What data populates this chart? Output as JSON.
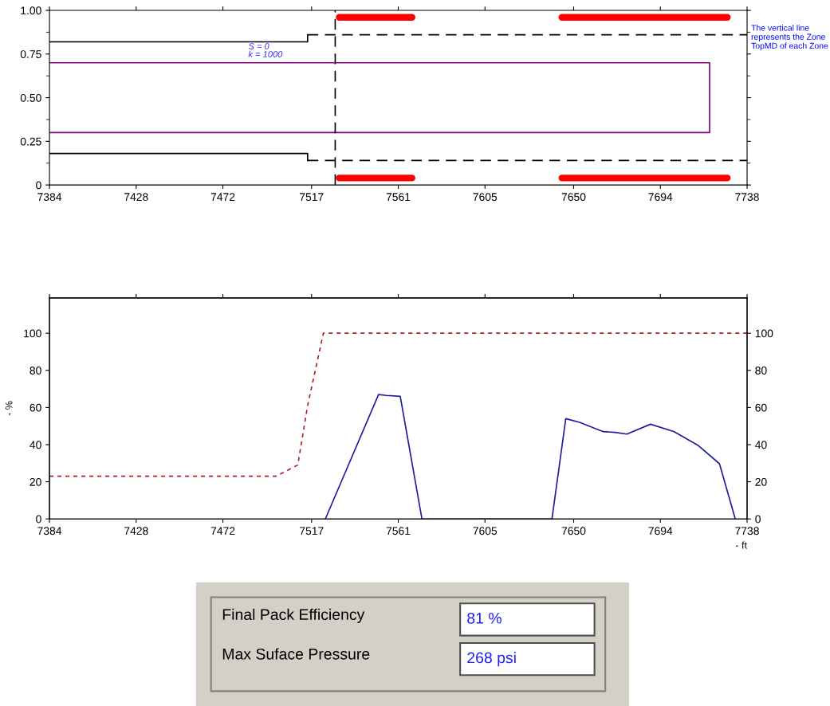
{
  "chart_data": [
    {
      "type": "line",
      "xlim": [
        7384,
        7738
      ],
      "ylim": [
        0,
        1
      ],
      "xticks": [
        7384,
        7428,
        7472,
        7517,
        7561,
        7605,
        7650,
        7694,
        7738
      ],
      "yticks": [
        0,
        {
          "value": 0.125,
          "label": null
        },
        {
          "value": 0.25,
          "label": "0.25"
        },
        {
          "value": 0.375,
          "label": null
        },
        {
          "value": 0.5,
          "label": "0.50"
        },
        {
          "value": 0.625,
          "label": null
        },
        {
          "value": 0.75,
          "label": "0.75"
        },
        {
          "value": 0.875,
          "label": null
        },
        {
          "value": 1,
          "label": "1.00"
        }
      ],
      "series": [
        {
          "color": "#000000",
          "line_style": "solid",
          "x": [
            7384,
            7515,
            7515
          ],
          "values": [
            0.82,
            0.82,
            0.86
          ]
        },
        {
          "color": "#000000",
          "line_style": "dashed",
          "x": [
            7515,
            7738
          ],
          "values": [
            0.86,
            0.86
          ]
        },
        {
          "color": "#000000",
          "line_style": "solid",
          "x": [
            7384,
            7515,
            7515
          ],
          "values": [
            0.18,
            0.18,
            0.14
          ]
        },
        {
          "color": "#000000",
          "line_style": "dashed",
          "x": [
            7515,
            7738
          ],
          "values": [
            0.14,
            0.14
          ]
        },
        {
          "color": "#800080",
          "line_style": "solid",
          "x": [
            7384,
            7719,
            7719,
            7384
          ],
          "values": [
            0.7,
            0.7,
            0.3,
            0.3
          ]
        },
        {
          "color": "#ff0000",
          "line_style": "solid",
          "x": [
            7531,
            7568,
            7600,
            7644,
            7728
          ],
          "values": [
            0.96,
            0.96,
            null,
            0.96,
            0.96
          ]
        },
        {
          "color": "#ff0000",
          "line_style": "solid",
          "x": [
            7531,
            7568,
            7600,
            7644,
            7728
          ],
          "values": [
            0.04,
            0.04,
            null,
            0.04,
            0.04
          ]
        }
      ],
      "ref_lines": [
        {
          "axis": "x",
          "value": 7529,
          "color": "#000000",
          "line_style": "dashed"
        }
      ],
      "annotations": [
        "S = 0",
        "k = 1000",
        "The vertical line represents the Zone TopMD of each Zone"
      ],
      "tick_labels": "xy"
    },
    {
      "type": "line",
      "xlabel": "- ft",
      "ylabel": "- %",
      "xlim": [
        7384,
        7738
      ],
      "ylim": [
        0,
        119
      ],
      "y2lim": [
        0,
        119
      ],
      "xticks": [
        7384,
        7428,
        7472,
        7517,
        7561,
        7605,
        7650,
        7694,
        7738
      ],
      "yticks": [
        0,
        20,
        40,
        60,
        80,
        100
      ],
      "y2ticks": [
        0,
        20,
        40,
        60,
        80,
        100
      ],
      "series": [
        {
          "color": "#aa2222",
          "line_style": "dotted",
          "x": [
            7384,
            7499,
            7510,
            7515,
            7523,
            7738
          ],
          "values": [
            23,
            23,
            29,
            61,
            100,
            100
          ]
        },
        {
          "color": "#1c1c9c",
          "line_style": "solid",
          "x": [
            7524,
            7551,
            7555,
            7562,
            7573,
            7639,
            7646,
            7653,
            7665,
            7671,
            7677,
            7689,
            7701,
            7713,
            7724,
            7732
          ],
          "values": [
            0,
            67,
            66.5,
            66,
            0,
            0,
            54,
            52,
            47,
            46.6,
            45.7,
            51,
            47,
            39.7,
            29.7,
            0
          ]
        }
      ]
    },
    {
      "type": "other",
      "annotations": [
        "Final Pack Efficiency",
        "81 %",
        "Max Suface Pressure",
        "268 psi"
      ]
    }
  ]
}
